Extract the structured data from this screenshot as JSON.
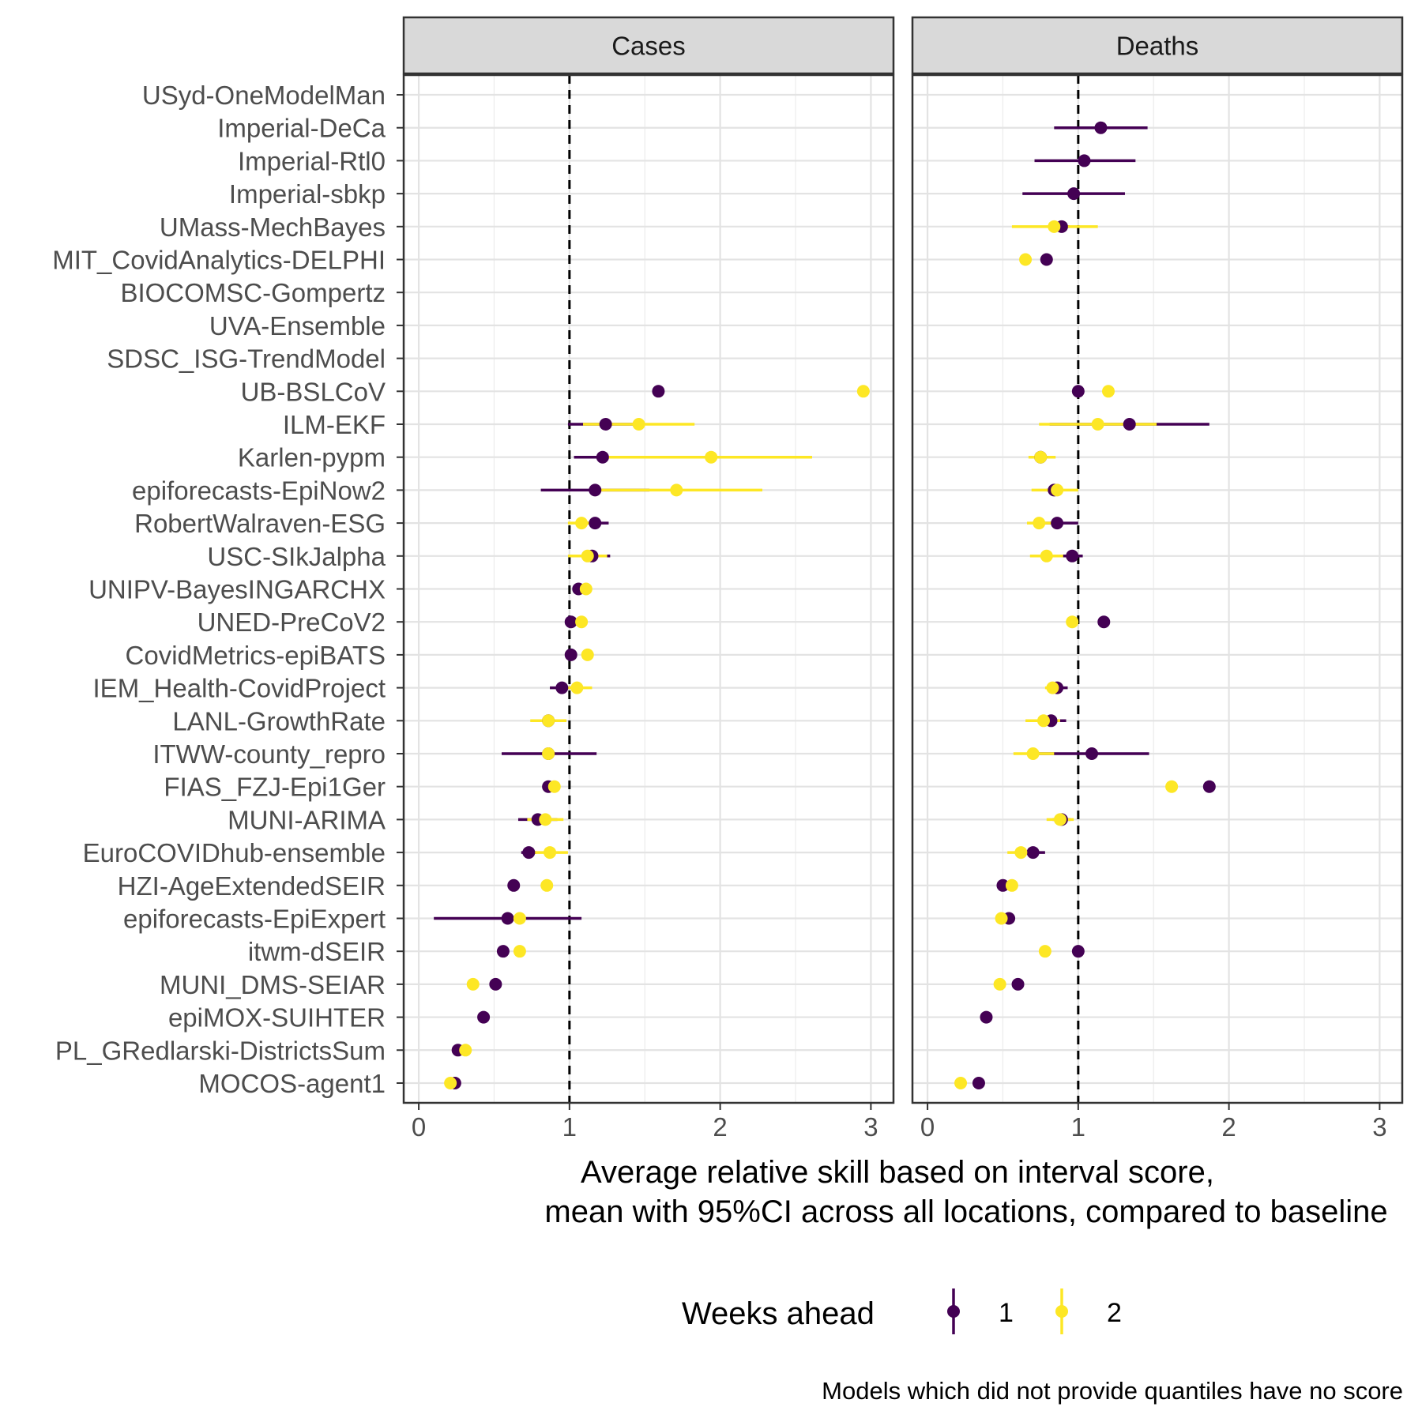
{
  "chart_data": [
    {
      "type": "scatter",
      "panel": "Cases",
      "xlim": [
        -0.1,
        3.15
      ],
      "x_ticks": [
        "0",
        "1",
        "2",
        "3"
      ],
      "models": [
        "USyd-OneModelMan",
        "Imperial-DeCa",
        "Imperial-Rtl0",
        "Imperial-sbkp",
        "UMass-MechBayes",
        "MIT_CovidAnalytics-DELPHI",
        "BIOCOMSC-Gompertz",
        "UVA-Ensemble",
        "SDSC_ISG-TrendModel",
        "UB-BSLCoV",
        "ILM-EKF",
        "Karlen-pypm",
        "epiforecasts-EpiNow2",
        "RobertWalraven-ESG",
        "USC-SIkJalpha",
        "UNIPV-BayesINGARCHX",
        "UNED-PreCoV2",
        "CovidMetrics-epiBATS",
        "IEM_Health-CovidProject",
        "LANL-GrowthRate",
        "ITWW-county_repro",
        "FIAS_FZJ-Epi1Ger",
        "MUNI-ARIMA",
        "EuroCOVIDhub-ensemble",
        "HZI-AgeExtendedSEIR",
        "epiforecasts-EpiExpert",
        "itwm-dSEIR",
        "MUNI_DMS-SEIAR",
        "epiMOX-SUIHTER",
        "PL_GRedlarski-DistrictsSum",
        "MOCOS-agent1"
      ],
      "reference_line": 1,
      "series": [
        {
          "name": "1",
          "color": "#440154",
          "points": [
            {
              "model": "UB-BSLCoV",
              "x": 1.59
            },
            {
              "model": "ILM-EKF",
              "x": 1.24,
              "lo": 0.99,
              "hi": 1.49
            },
            {
              "model": "Karlen-pypm",
              "x": 1.22,
              "lo": 1.03,
              "hi": 1.42
            },
            {
              "model": "epiforecasts-EpiNow2",
              "x": 1.17,
              "lo": 0.81,
              "hi": 1.53
            },
            {
              "model": "RobertWalraven-ESG",
              "x": 1.17,
              "lo": 1.08,
              "hi": 1.26
            },
            {
              "model": "USC-SIkJalpha",
              "x": 1.15,
              "lo": 1.03,
              "hi": 1.27
            },
            {
              "model": "UNIPV-BayesINGARCHX",
              "x": 1.06,
              "lo": 1.02,
              "hi": 1.1
            },
            {
              "model": "UNED-PreCoV2",
              "x": 1.01
            },
            {
              "model": "CovidMetrics-epiBATS",
              "x": 1.01
            },
            {
              "model": "IEM_Health-CovidProject",
              "x": 0.95,
              "lo": 0.87,
              "hi": 1.03
            },
            {
              "model": "LANL-GrowthRate",
              "x": 0.86,
              "lo": 0.79,
              "hi": 0.93
            },
            {
              "model": "ITWW-county_repro",
              "x": 0.86,
              "lo": 0.55,
              "hi": 1.18
            },
            {
              "model": "FIAS_FZJ-Epi1Ger",
              "x": 0.86,
              "lo": 0.83,
              "hi": 0.89
            },
            {
              "model": "MUNI-ARIMA",
              "x": 0.79,
              "lo": 0.66,
              "hi": 0.92
            },
            {
              "model": "EuroCOVIDhub-ensemble",
              "x": 0.73,
              "lo": 0.68,
              "hi": 0.78
            },
            {
              "model": "HZI-AgeExtendedSEIR",
              "x": 0.63
            },
            {
              "model": "epiforecasts-EpiExpert",
              "x": 0.59,
              "lo": 0.1,
              "hi": 1.08
            },
            {
              "model": "itwm-dSEIR",
              "x": 0.56
            },
            {
              "model": "MUNI_DMS-SEIAR",
              "x": 0.51
            },
            {
              "model": "epiMOX-SUIHTER",
              "x": 0.43
            },
            {
              "model": "PL_GRedlarski-DistrictsSum",
              "x": 0.26
            },
            {
              "model": "MOCOS-agent1",
              "x": 0.24
            }
          ]
        },
        {
          "name": "2",
          "color": "#FDE725",
          "points": [
            {
              "model": "UB-BSLCoV",
              "x": 2.95
            },
            {
              "model": "ILM-EKF",
              "x": 1.46,
              "lo": 1.09,
              "hi": 1.83
            },
            {
              "model": "Karlen-pypm",
              "x": 1.94,
              "lo": 1.26,
              "hi": 2.61
            },
            {
              "model": "epiforecasts-EpiNow2",
              "x": 1.71,
              "lo": 1.14,
              "hi": 2.28
            },
            {
              "model": "RobertWalraven-ESG",
              "x": 1.08,
              "lo": 0.99,
              "hi": 1.17
            },
            {
              "model": "USC-SIkJalpha",
              "x": 1.12,
              "lo": 0.99,
              "hi": 1.25
            },
            {
              "model": "UNIPV-BayesINGARCHX",
              "x": 1.11
            },
            {
              "model": "UNED-PreCoV2",
              "x": 1.08
            },
            {
              "model": "CovidMetrics-epiBATS",
              "x": 1.12
            },
            {
              "model": "IEM_Health-CovidProject",
              "x": 1.05,
              "lo": 0.95,
              "hi": 1.15
            },
            {
              "model": "LANL-GrowthRate",
              "x": 0.86,
              "lo": 0.74,
              "hi": 0.98
            },
            {
              "model": "ITWW-county_repro",
              "x": 0.86
            },
            {
              "model": "FIAS_FZJ-Epi1Ger",
              "x": 0.9
            },
            {
              "model": "MUNI-ARIMA",
              "x": 0.84,
              "lo": 0.72,
              "hi": 0.96
            },
            {
              "model": "EuroCOVIDhub-ensemble",
              "x": 0.87,
              "lo": 0.75,
              "hi": 0.99
            },
            {
              "model": "HZI-AgeExtendedSEIR",
              "x": 0.85
            },
            {
              "model": "epiforecasts-EpiExpert",
              "x": 0.67
            },
            {
              "model": "itwm-dSEIR",
              "x": 0.67
            },
            {
              "model": "MUNI_DMS-SEIAR",
              "x": 0.36
            },
            {
              "model": "PL_GRedlarski-DistrictsSum",
              "x": 0.31
            },
            {
              "model": "MOCOS-agent1",
              "x": 0.21
            }
          ]
        }
      ]
    },
    {
      "type": "scatter",
      "panel": "Deaths",
      "xlim": [
        -0.1,
        3.15
      ],
      "x_ticks": [
        "0",
        "1",
        "2",
        "3"
      ],
      "reference_line": 1,
      "series": [
        {
          "name": "1",
          "color": "#440154",
          "points": [
            {
              "model": "Imperial-DeCa",
              "x": 1.15,
              "lo": 0.84,
              "hi": 1.46
            },
            {
              "model": "Imperial-Rtl0",
              "x": 1.04,
              "lo": 0.71,
              "hi": 1.38
            },
            {
              "model": "Imperial-sbkp",
              "x": 0.97,
              "lo": 0.63,
              "hi": 1.31
            },
            {
              "model": "UMass-MechBayes",
              "x": 0.89,
              "lo": 0.84,
              "hi": 0.94
            },
            {
              "model": "MIT_CovidAnalytics-DELPHI",
              "x": 0.79
            },
            {
              "model": "UB-BSLCoV",
              "x": 1.0
            },
            {
              "model": "ILM-EKF",
              "x": 1.34,
              "lo": 0.81,
              "hi": 1.87
            },
            {
              "model": "Karlen-pypm",
              "x": 0.75,
              "lo": 0.71,
              "hi": 0.79
            },
            {
              "model": "epiforecasts-EpiNow2",
              "x": 0.84,
              "lo": 0.79,
              "hi": 0.89
            },
            {
              "model": "RobertWalraven-ESG",
              "x": 0.86,
              "lo": 0.72,
              "hi": 1.0
            },
            {
              "model": "USC-SIkJalpha",
              "x": 0.96,
              "lo": 0.89,
              "hi": 1.03
            },
            {
              "model": "UNED-PreCoV2",
              "x": 1.17
            },
            {
              "model": "IEM_Health-CovidProject",
              "x": 0.86,
              "lo": 0.79,
              "hi": 0.93
            },
            {
              "model": "LANL-GrowthRate",
              "x": 0.82,
              "lo": 0.72,
              "hi": 0.92
            },
            {
              "model": "ITWW-county_repro",
              "x": 1.09,
              "lo": 0.71,
              "hi": 1.47
            },
            {
              "model": "FIAS_FZJ-Epi1Ger",
              "x": 1.87
            },
            {
              "model": "MUNI-ARIMA",
              "x": 0.89,
              "lo": 0.83,
              "hi": 0.95
            },
            {
              "model": "EuroCOVIDhub-ensemble",
              "x": 0.7,
              "lo": 0.63,
              "hi": 0.78
            },
            {
              "model": "HZI-AgeExtendedSEIR",
              "x": 0.5
            },
            {
              "model": "epiforecasts-EpiExpert",
              "x": 0.54
            },
            {
              "model": "itwm-dSEIR",
              "x": 1.0
            },
            {
              "model": "MUNI_DMS-SEIAR",
              "x": 0.6
            },
            {
              "model": "epiMOX-SUIHTER",
              "x": 0.39
            },
            {
              "model": "MOCOS-agent1",
              "x": 0.34
            }
          ]
        },
        {
          "name": "2",
          "color": "#FDE725",
          "points": [
            {
              "model": "UMass-MechBayes",
              "x": 0.84,
              "lo": 0.56,
              "hi": 1.13
            },
            {
              "model": "MIT_CovidAnalytics-DELPHI",
              "x": 0.65
            },
            {
              "model": "UB-BSLCoV",
              "x": 1.2
            },
            {
              "model": "ILM-EKF",
              "x": 1.13,
              "lo": 0.74,
              "hi": 1.52
            },
            {
              "model": "Karlen-pypm",
              "x": 0.75,
              "lo": 0.67,
              "hi": 0.85
            },
            {
              "model": "epiforecasts-EpiNow2",
              "x": 0.86,
              "lo": 0.69,
              "hi": 1.0
            },
            {
              "model": "RobertWalraven-ESG",
              "x": 0.74,
              "lo": 0.66,
              "hi": 0.82
            },
            {
              "model": "USC-SIkJalpha",
              "x": 0.79,
              "lo": 0.68,
              "hi": 0.9
            },
            {
              "model": "UNED-PreCoV2",
              "x": 0.96
            },
            {
              "model": "IEM_Health-CovidProject",
              "x": 0.83,
              "lo": 0.78,
              "hi": 0.88
            },
            {
              "model": "LANL-GrowthRate",
              "x": 0.77,
              "lo": 0.65,
              "hi": 0.88
            },
            {
              "model": "ITWW-county_repro",
              "x": 0.7,
              "lo": 0.57,
              "hi": 0.84
            },
            {
              "model": "FIAS_FZJ-Epi1Ger",
              "x": 1.62
            },
            {
              "model": "MUNI-ARIMA",
              "x": 0.88,
              "lo": 0.79,
              "hi": 0.97
            },
            {
              "model": "EuroCOVIDhub-ensemble",
              "x": 0.62,
              "lo": 0.53,
              "hi": 0.72
            },
            {
              "model": "HZI-AgeExtendedSEIR",
              "x": 0.56
            },
            {
              "model": "epiforecasts-EpiExpert",
              "x": 0.49
            },
            {
              "model": "itwm-dSEIR",
              "x": 0.78
            },
            {
              "model": "MUNI_DMS-SEIAR",
              "x": 0.48
            },
            {
              "model": "MOCOS-agent1",
              "x": 0.22
            }
          ]
        }
      ]
    }
  ],
  "xlabel_line1": "Average relative skill based on interval score,",
  "xlabel_line2": "mean with 95%CI across all locations, compared to baseline",
  "legend": {
    "title": "Weeks ahead",
    "items": [
      "1",
      "2"
    ]
  },
  "caption": "Models which did not provide quantiles have no score"
}
